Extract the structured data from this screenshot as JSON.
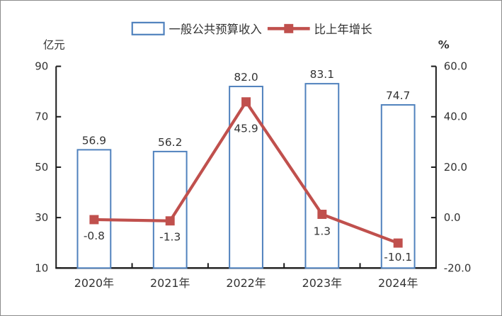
{
  "figure": {
    "background": "#FFFFFF",
    "border_color": "#8C8C8C"
  },
  "chart_data": {
    "type": "bar",
    "subtype": "bar+line combo, dual axis",
    "categories": [
      "2020年",
      "2021年",
      "2022年",
      "2023年",
      "2024年"
    ],
    "series": [
      {
        "name": "一般公共预算收入",
        "chart": "bar",
        "axis": "left",
        "values": [
          56.9,
          56.2,
          82.0,
          83.1,
          74.7
        ],
        "labels": [
          "56.9",
          "56.2",
          "82.0",
          "83.1",
          "74.7"
        ],
        "fill": "#FFFFFF",
        "border_color": "#4F81BD"
      },
      {
        "name": "比上年增长",
        "chart": "line",
        "axis": "right",
        "marker": "square",
        "values": [
          -0.8,
          -1.3,
          45.9,
          1.3,
          -10.1
        ],
        "labels": [
          "-0.8",
          "-1.3",
          "45.9",
          "1.3",
          "-10.1"
        ],
        "color": "#C0504D"
      }
    ],
    "left_axis": {
      "title": "亿元",
      "min": 10,
      "max": 90,
      "tick_values": [
        90,
        70,
        50,
        30,
        10
      ],
      "tick_labels": [
        "90",
        "70",
        "50",
        "30",
        "10"
      ]
    },
    "right_axis": {
      "title": "%",
      "min": -20,
      "max": 60,
      "tick_values": [
        60,
        40,
        20,
        0,
        -20
      ],
      "tick_labels": [
        "60.0",
        "40.0",
        "20.0",
        "0.0",
        "-20.0"
      ]
    },
    "x_axis": {
      "tick_labels": [
        "2020年",
        "2021年",
        "2022年",
        "2023年",
        "2024年"
      ]
    },
    "legend_position": "top",
    "grid": false,
    "text_color": "#333333",
    "axis_color": "#1A1A1A"
  }
}
